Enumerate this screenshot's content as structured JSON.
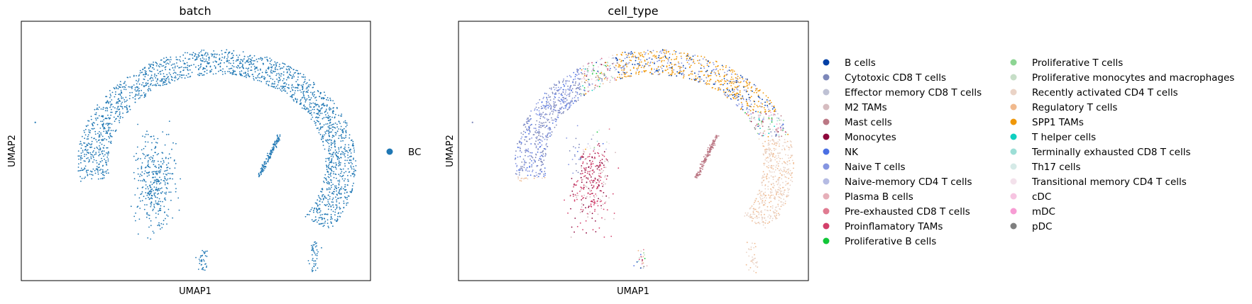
{
  "chart_data": [
    {
      "type": "scatter",
      "title": "batch",
      "xlabel": "UMAP1",
      "ylabel": "UMAP2",
      "grid": false,
      "legend": "right",
      "series": [
        {
          "name": "BC",
          "color": "#1f77b4"
        }
      ]
    },
    {
      "type": "scatter",
      "title": "cell_type",
      "xlabel": "UMAP1",
      "ylabel": "UMAP2",
      "grid": false,
      "legend": "right",
      "series": [
        {
          "name": "B cells",
          "color": "#023fa5"
        },
        {
          "name": "Cytotoxic CD8 T cells",
          "color": "#7d87b9"
        },
        {
          "name": "Effector memory CD8 T cells",
          "color": "#bec1d4"
        },
        {
          "name": "M2 TAMs",
          "color": "#d6bcc0"
        },
        {
          "name": "Mast cells",
          "color": "#bb7784"
        },
        {
          "name": "Monocytes",
          "color": "#8e063b"
        },
        {
          "name": "NK",
          "color": "#4a6fe3"
        },
        {
          "name": "Naive T cells",
          "color": "#8595e1"
        },
        {
          "name": "Naive-memory CD4 T cells",
          "color": "#b5bbe3"
        },
        {
          "name": "Plasma B cells",
          "color": "#e6afb9"
        },
        {
          "name": "Pre-exhausted CD8 T cells",
          "color": "#e07b91"
        },
        {
          "name": "Proinflamatory TAMs",
          "color": "#d33f6a"
        },
        {
          "name": "Proliferative B cells",
          "color": "#11c638"
        },
        {
          "name": "Proliferative T cells",
          "color": "#8dd593"
        },
        {
          "name": "Proliferative monocytes and macrophages",
          "color": "#c6dec7"
        },
        {
          "name": "Recently activated CD4 T cells",
          "color": "#ead3c6"
        },
        {
          "name": "Regulatory T cells",
          "color": "#f0b98d"
        },
        {
          "name": "SPP1 TAMs",
          "color": "#ef9708"
        },
        {
          "name": "T helper cells",
          "color": "#0fcfc0"
        },
        {
          "name": "Terminally exhausted CD8 T cells",
          "color": "#9cded6"
        },
        {
          "name": "Th17 cells",
          "color": "#d5eae7"
        },
        {
          "name": "Transitional memory CD4 T cells",
          "color": "#f3e1eb"
        },
        {
          "name": "cDC",
          "color": "#f6c4e1"
        },
        {
          "name": "mDC",
          "color": "#f79cd4"
        },
        {
          "name": "pDC",
          "color": "#7f7f7f"
        }
      ]
    }
  ]
}
